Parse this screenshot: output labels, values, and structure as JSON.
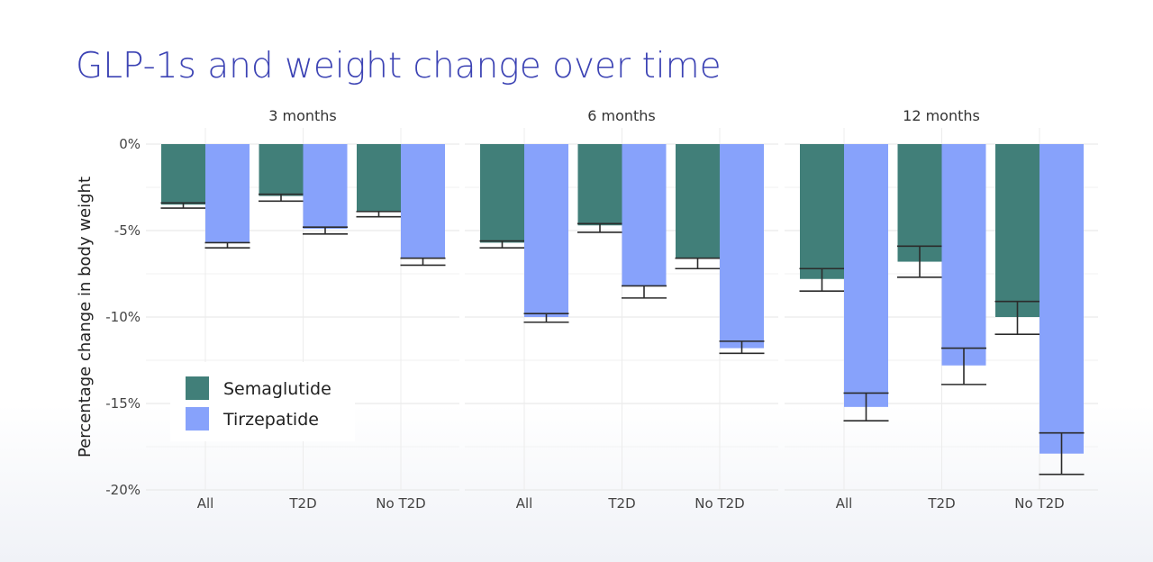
{
  "chart_data": {
    "type": "bar",
    "title": "GLP-1s and weight change over time",
    "ylabel": "Percentage change in body weight",
    "xlabel": "",
    "ylim": [
      -20,
      0
    ],
    "yticks": [
      0,
      -5,
      -10,
      -15,
      -20
    ],
    "ytick_labels": [
      "0%",
      "-5%",
      "-10%",
      "-15%",
      "-20%"
    ],
    "grid": true,
    "legend_position": "bottom-left",
    "colors": {
      "Semaglutide": "#417f79",
      "Tirzepatide": "#87a2fb",
      "title": "#3c43b4",
      "error_bar": "#2b2b2b"
    },
    "categories": [
      "All",
      "T2D",
      "No T2D"
    ],
    "facets": [
      {
        "label": "3 months",
        "series": [
          {
            "name": "Semaglutide",
            "values": [
              -3.5,
              -3.0,
              -3.9
            ],
            "error_low": [
              -3.7,
              -3.3,
              -4.2
            ],
            "error_high": [
              -3.4,
              -2.9,
              -3.9
            ]
          },
          {
            "name": "Tirzepatide",
            "values": [
              -5.7,
              -4.9,
              -6.6
            ],
            "error_low": [
              -6.0,
              -5.2,
              -7.0
            ],
            "error_high": [
              -5.7,
              -4.8,
              -6.6
            ]
          }
        ]
      },
      {
        "label": "6 months",
        "series": [
          {
            "name": "Semaglutide",
            "values": [
              -5.7,
              -4.7,
              -6.6
            ],
            "error_low": [
              -6.0,
              -5.1,
              -7.2
            ],
            "error_high": [
              -5.6,
              -4.6,
              -6.6
            ]
          },
          {
            "name": "Tirzepatide",
            "values": [
              -10.0,
              -8.2,
              -11.8
            ],
            "error_low": [
              -10.3,
              -8.9,
              -12.1
            ],
            "error_high": [
              -9.8,
              -8.2,
              -11.4
            ]
          }
        ]
      },
      {
        "label": "12 months",
        "series": [
          {
            "name": "Semaglutide",
            "values": [
              -7.8,
              -6.8,
              -10.0
            ],
            "error_low": [
              -8.5,
              -7.7,
              -11.0
            ],
            "error_high": [
              -7.2,
              -5.9,
              -9.1
            ]
          },
          {
            "name": "Tirzepatide",
            "values": [
              -15.2,
              -12.8,
              -17.9
            ],
            "error_low": [
              -16.0,
              -13.9,
              -19.1
            ],
            "error_high": [
              -14.4,
              -11.8,
              -16.7
            ]
          }
        ]
      }
    ]
  }
}
